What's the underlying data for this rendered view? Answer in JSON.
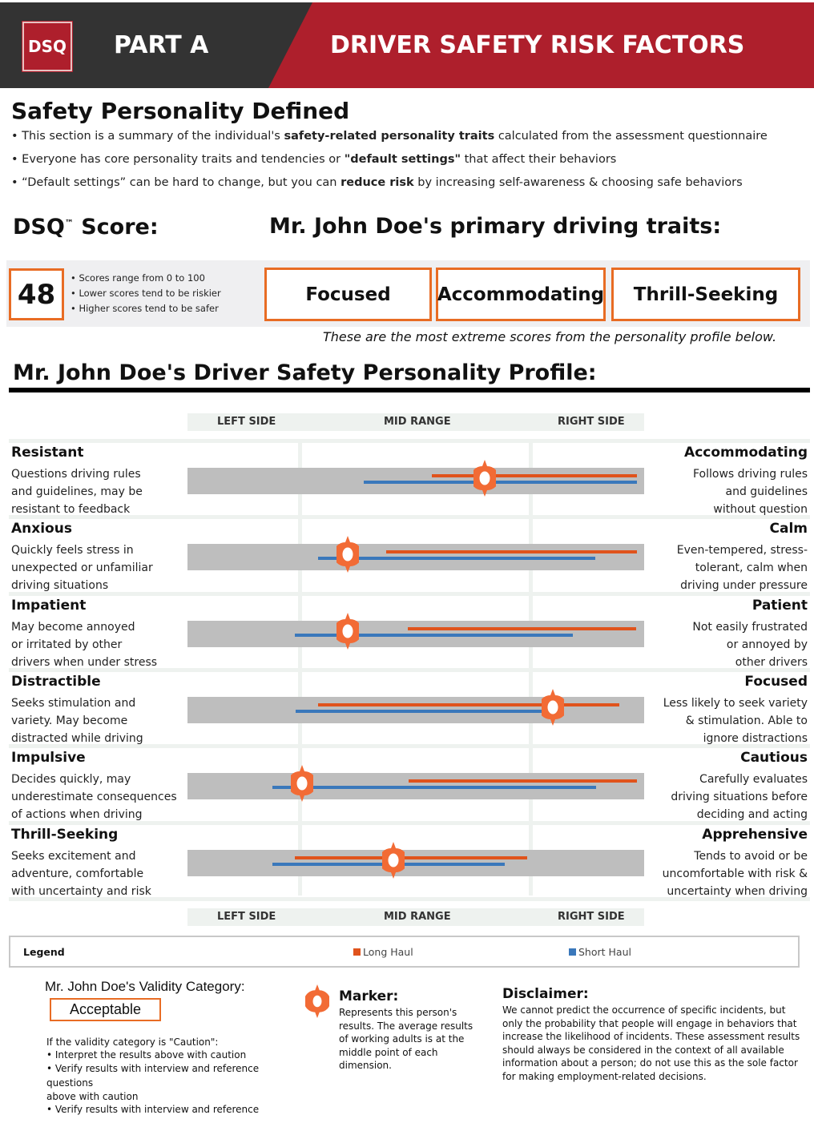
{
  "header": {
    "logo_text": "DSQ",
    "part": "PART A",
    "title": "DRIVER SAFETY RISK FACTORS"
  },
  "intro": {
    "title": "Safety Personality Defined",
    "bullets": [
      {
        "pre": "This section is a summary of the individual's ",
        "bold": "safety-related personality traits",
        "post": " calculated from the assessment questionnaire"
      },
      {
        "pre": "Everyone has core personality traits and tendencies or ",
        "bold": "\"default settings\"",
        "post": " that affect their behaviors"
      },
      {
        "pre": "“Default settings” can be hard to change, but you can ",
        "bold": "reduce risk",
        "post": " by increasing self-awareness & choosing safe behaviors"
      }
    ]
  },
  "score": {
    "label_pre": "DSQ",
    "label_tm": "™",
    "label_post": " Score:",
    "value": "48",
    "notes": [
      "• Scores range from 0 to 100",
      "• Lower scores tend to be riskier",
      "• Higher scores tend to be safer"
    ]
  },
  "traits": {
    "title": "Mr. John Doe's primary driving traits:",
    "items": [
      "Focused",
      "Accommodating",
      "Thrill-Seeking"
    ],
    "note": "These are the most extreme scores from the personality profile below."
  },
  "profile": {
    "title": "Mr. John Doe's Driver Safety Personality Profile:",
    "columns": [
      "LEFT SIDE",
      "MID RANGE",
      "RIGHT SIDE"
    ],
    "colors": {
      "long_haul": "#e0531c",
      "short_haul": "#3a78bb",
      "marker": "#f26b35",
      "band": "#bebebe"
    },
    "rows": [
      {
        "left_title": "Resistant",
        "left_desc": [
          "Questions driving rules",
          "and guidelines, may be",
          "resistant to feedback"
        ],
        "right_title": "Accommodating",
        "right_desc": [
          "Follows driving rules",
          "and guidelines",
          "without question"
        ],
        "marker": 65,
        "long_haul": [
          53.5,
          98.4
        ],
        "short_haul": [
          38.6,
          98.4
        ]
      },
      {
        "left_title": "Anxious",
        "left_desc": [
          "Quickly feels stress in",
          "unexpected or unfamiliar",
          "driving situations"
        ],
        "right_title": "Calm",
        "right_desc": [
          "Even-tempered, stress-",
          "tolerant, calm when",
          "driving under pressure"
        ],
        "marker": 35,
        "long_haul": [
          43.5,
          98.4
        ],
        "short_haul": [
          28.6,
          89.3
        ]
      },
      {
        "left_title": "Impatient",
        "left_desc": [
          "May become annoyed",
          "or irritated by other",
          "drivers  when under stress"
        ],
        "right_title": "Patient",
        "right_desc": [
          "Not easily frustrated",
          "or annoyed by",
          "other drivers"
        ],
        "marker": 35,
        "long_haul": [
          48.2,
          98.2
        ],
        "short_haul": [
          23.5,
          84.4
        ]
      },
      {
        "left_title": "Distractible",
        "left_desc": [
          "Seeks stimulation and",
          "variety. May become",
          "distracted while driving"
        ],
        "right_title": "Focused",
        "right_desc": [
          "Less likely to seek variety",
          "& stimulation. Able to",
          "ignore distractions"
        ],
        "marker": 80,
        "long_haul": [
          28.6,
          94.6
        ],
        "short_haul": [
          23.7,
          77.9
        ]
      },
      {
        "left_title": "Impulsive",
        "left_desc": [
          "Decides quickly, may",
          "underestimate consequences",
          "of actions when driving"
        ],
        "right_title": "Cautious",
        "right_desc": [
          "Carefully evaluates",
          "driving  situations before",
          "deciding and acting"
        ],
        "marker": 25,
        "long_haul": [
          48.4,
          98.4
        ],
        "short_haul": [
          18.6,
          89.5
        ]
      },
      {
        "left_title": "Thrill-Seeking",
        "left_desc": [
          "Seeks excitement and",
          "adventure, comfortable",
          "with uncertainty and risk"
        ],
        "right_title": "Apprehensive",
        "right_desc": [
          "Tends to avoid or be",
          "uncomfortable with risk &",
          "uncertainty when driving"
        ],
        "marker": 45,
        "long_haul": [
          23.5,
          74.4
        ],
        "short_haul": [
          18.6,
          69.5
        ]
      }
    ]
  },
  "legend": {
    "title": "Legend",
    "long_haul": "Long Haul",
    "short_haul": "Short Haul"
  },
  "validity": {
    "title": "Mr. John Doe's Validity Category:",
    "value": "Acceptable",
    "lines": [
      "If the validity category is \"Caution\":",
      "• Interpret the results above with caution",
      "• Verify results with interview and reference",
      "questions",
      "above with caution",
      "• Verify results with interview and reference"
    ]
  },
  "marker_info": {
    "title": "Marker:",
    "text": "Represents this person's results. The average results of working adults is at the middle point of each dimension."
  },
  "disclaimer": {
    "title": "Disclaimer:",
    "text": "We cannot predict the occurrence of specific incidents, but only the probability that people will engage in behaviors that increase the likelihood of incidents. These assessment results should always be considered in the context of all available information about a person; do not use this as the sole factor for making employment-related decisions."
  }
}
